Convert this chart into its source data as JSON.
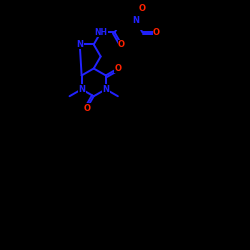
{
  "background_color": "#000000",
  "bond_color": "#1a1aff",
  "atom_colors": {
    "O": "#ff0000",
    "N": "#1a1aff",
    "C": "#1a1aff",
    "default": "#1a1aff"
  },
  "figure_size": [
    2.5,
    2.5
  ],
  "dpi": 100
}
